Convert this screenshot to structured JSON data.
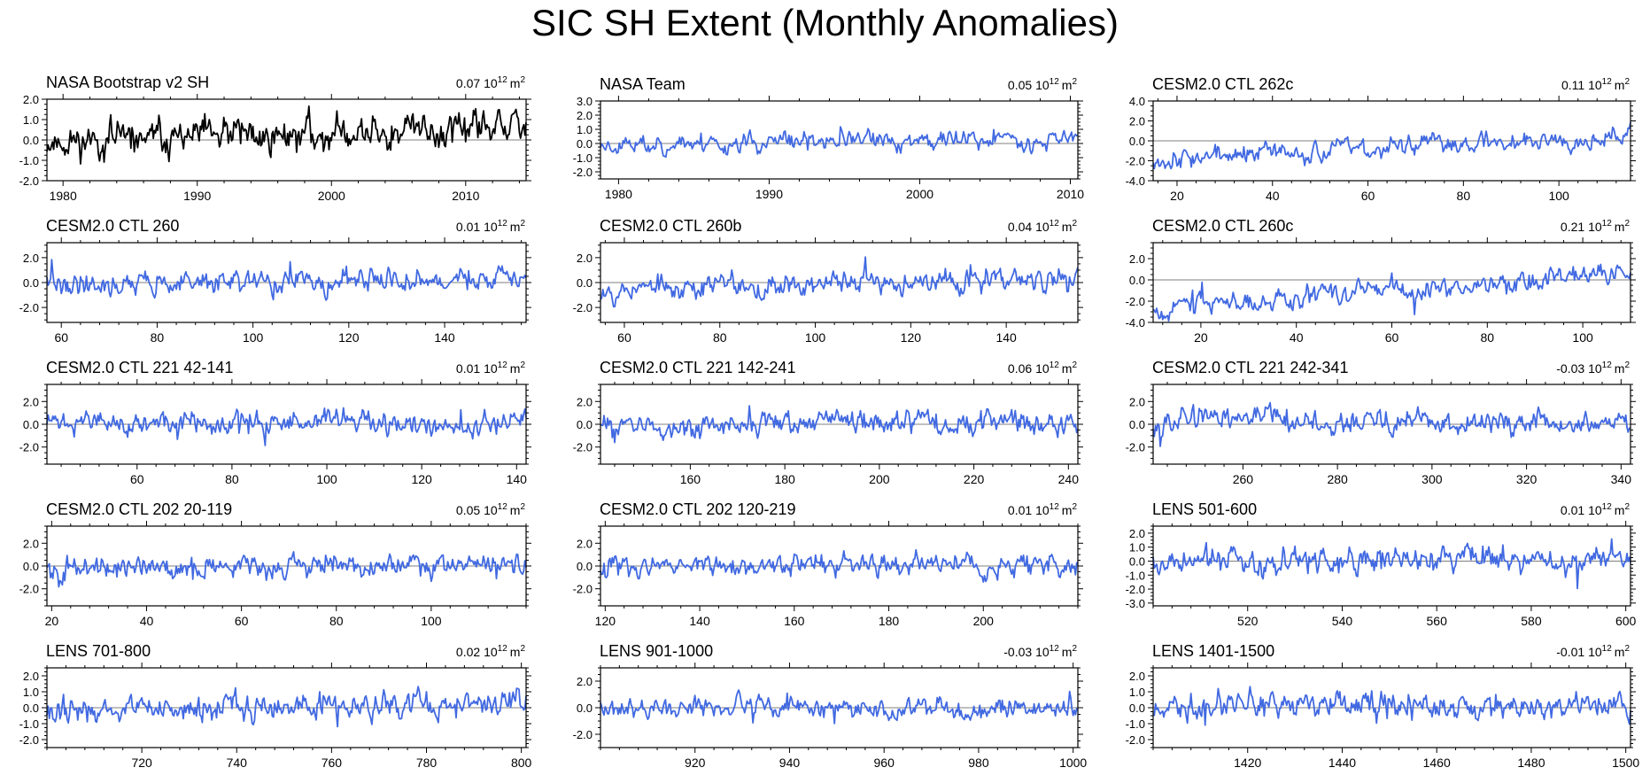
{
  "figure": {
    "title": "SIC SH Extent (Monthly Anomalies)",
    "zero_line_color": "#7f7f7f",
    "axis_color": "#000000"
  },
  "chart_data": [
    {
      "type": "line",
      "title": "NASA Bootstrap v2 SH",
      "trend": "0.07",
      "unit_base": "10",
      "unit_exp": "12",
      "unit_suffix": "m",
      "unit_sup": "2",
      "color": "#000000",
      "xlim": [
        1978.8,
        2014.5
      ],
      "ylim": [
        -2.0,
        2.0
      ],
      "xticks": [
        1980,
        1990,
        2000,
        2010
      ],
      "yticks": [
        "2.0",
        "1.0",
        "0.0",
        "-1.0",
        "-2.0"
      ],
      "ytick_values": [
        2,
        1,
        0,
        -1,
        -2
      ],
      "amplitude": 0.55,
      "seed": 11,
      "trend_endpoints": [
        -0.1,
        0.6
      ]
    },
    {
      "type": "line",
      "title": "NASA Team",
      "trend": "0.05",
      "unit_base": "10",
      "unit_exp": "12",
      "unit_suffix": "m",
      "unit_sup": "2",
      "color": "#4169e1",
      "xlim": [
        1978.8,
        2010.5
      ],
      "ylim": [
        -2.5,
        3.0
      ],
      "xticks": [
        1980,
        1990,
        2000,
        2010
      ],
      "yticks": [
        "3.0",
        "2.0",
        "1.0",
        "0.0",
        "-1.0",
        "-2.0"
      ],
      "ytick_values": [
        3,
        2,
        1,
        0,
        -1,
        -2
      ],
      "amplitude": 0.45,
      "seed": 23,
      "trend_endpoints": [
        -0.1,
        0.4
      ]
    },
    {
      "type": "line",
      "title": "CESM2.0 CTL 262c",
      "trend": "0.11",
      "unit_base": "10",
      "unit_exp": "12",
      "unit_suffix": "m",
      "unit_sup": "2",
      "color": "#4169e1",
      "xlim": [
        15,
        115
      ],
      "ylim": [
        -4.0,
        4.0
      ],
      "xticks": [
        20,
        40,
        60,
        80,
        100
      ],
      "yticks": [
        "4.0",
        "2.0",
        "0.0",
        "-2.0",
        "-4.0"
      ],
      "ytick_values": [
        4,
        2,
        0,
        -2,
        -4
      ],
      "amplitude": 0.65,
      "seed": 37,
      "trend_endpoints": [
        -1.8,
        0.6
      ]
    },
    {
      "type": "line",
      "title": "CESM2.0 CTL 260",
      "trend": "0.01",
      "unit_base": "10",
      "unit_exp": "12",
      "unit_suffix": "m",
      "unit_sup": "2",
      "color": "#4169e1",
      "xlim": [
        57,
        157
      ],
      "ylim": [
        -3.2,
        3.2
      ],
      "xticks": [
        60,
        80,
        100,
        120,
        140
      ],
      "yticks": [
        "2.0",
        "0.0",
        "-2.0"
      ],
      "ytick_values": [
        2,
        0,
        -2
      ],
      "amplitude": 0.6,
      "seed": 41,
      "trend_endpoints": [
        -0.1,
        0.2
      ]
    },
    {
      "type": "line",
      "title": "CESM2.0 CTL 260b",
      "trend": "0.04",
      "unit_base": "10",
      "unit_exp": "12",
      "unit_suffix": "m",
      "unit_sup": "2",
      "color": "#4169e1",
      "xlim": [
        55,
        155
      ],
      "ylim": [
        -3.2,
        3.2
      ],
      "xticks": [
        60,
        80,
        100,
        120,
        140
      ],
      "yticks": [
        "2.0",
        "0.0",
        "-2.0"
      ],
      "ytick_values": [
        2,
        0,
        -2
      ],
      "amplitude": 0.6,
      "seed": 53,
      "trend_endpoints": [
        -0.5,
        0.3
      ]
    },
    {
      "type": "line",
      "title": "CESM2.0 CTL 260c",
      "trend": "0.21",
      "unit_base": "10",
      "unit_exp": "12",
      "unit_suffix": "m",
      "unit_sup": "2",
      "color": "#4169e1",
      "xlim": [
        10,
        110
      ],
      "ylim": [
        -4.0,
        3.5
      ],
      "xticks": [
        20,
        40,
        60,
        80,
        100
      ],
      "yticks": [
        "2.0",
        "0.0",
        "-2.0",
        "-4.0"
      ],
      "ytick_values": [
        2,
        0,
        -2,
        -4
      ],
      "amplitude": 0.6,
      "seed": 67,
      "trend_endpoints": [
        -2.6,
        0.7
      ]
    },
    {
      "type": "line",
      "title": "CESM2.0 CTL 221 42-141",
      "trend": "0.01",
      "unit_base": "10",
      "unit_exp": "12",
      "unit_suffix": "m",
      "unit_sup": "2",
      "color": "#4169e1",
      "xlim": [
        41,
        142
      ],
      "ylim": [
        -3.5,
        3.5
      ],
      "xticks": [
        60,
        80,
        100,
        120,
        140
      ],
      "yticks": [
        "2.0",
        "0.0",
        "-2.0"
      ],
      "ytick_values": [
        2,
        0,
        -2
      ],
      "amplitude": 0.65,
      "seed": 71,
      "trend_endpoints": [
        0.1,
        0.1
      ]
    },
    {
      "type": "line",
      "title": "CESM2.0 CTL 221 142-241",
      "trend": "0.06",
      "unit_base": "10",
      "unit_exp": "12",
      "unit_suffix": "m",
      "unit_sup": "2",
      "color": "#4169e1",
      "xlim": [
        141,
        242
      ],
      "ylim": [
        -3.5,
        3.5
      ],
      "xticks": [
        160,
        180,
        200,
        220,
        240
      ],
      "yticks": [
        "2.0",
        "0.0",
        "-2.0"
      ],
      "ytick_values": [
        2,
        0,
        -2
      ],
      "amplitude": 0.65,
      "seed": 83,
      "trend_endpoints": [
        -0.2,
        0.4
      ]
    },
    {
      "type": "line",
      "title": "CESM2.0 CTL 221 242-341",
      "trend": "-0.03",
      "unit_base": "10",
      "unit_exp": "12",
      "unit_suffix": "m",
      "unit_sup": "2",
      "color": "#4169e1",
      "xlim": [
        241,
        342
      ],
      "ylim": [
        -3.5,
        3.5
      ],
      "xticks": [
        260,
        280,
        300,
        320,
        340
      ],
      "yticks": [
        "2.0",
        "0.0",
        "-2.0"
      ],
      "ytick_values": [
        2,
        0,
        -2
      ],
      "amplitude": 0.65,
      "seed": 97,
      "trend_endpoints": [
        0.4,
        -0.1
      ]
    },
    {
      "type": "line",
      "title": "CESM2.0 CTL 202 20-119",
      "trend": "0.05",
      "unit_base": "10",
      "unit_exp": "12",
      "unit_suffix": "m",
      "unit_sup": "2",
      "color": "#4169e1",
      "xlim": [
        19,
        120
      ],
      "ylim": [
        -3.5,
        3.5
      ],
      "xticks": [
        20,
        40,
        60,
        80,
        100
      ],
      "yticks": [
        "2.0",
        "0.0",
        "-2.0"
      ],
      "ytick_values": [
        2,
        0,
        -2
      ],
      "amplitude": 0.65,
      "seed": 101,
      "trend_endpoints": [
        -0.3,
        0.3
      ]
    },
    {
      "type": "line",
      "title": "CESM2.0 CTL 202 120-219",
      "trend": "0.01",
      "unit_base": "10",
      "unit_exp": "12",
      "unit_suffix": "m",
      "unit_sup": "2",
      "color": "#4169e1",
      "xlim": [
        119,
        220
      ],
      "ylim": [
        -3.5,
        3.5
      ],
      "xticks": [
        120,
        140,
        160,
        180,
        200
      ],
      "yticks": [
        "2.0",
        "0.0",
        "-2.0"
      ],
      "ytick_values": [
        2,
        0,
        -2
      ],
      "amplitude": 0.6,
      "seed": 113,
      "trend_endpoints": [
        0.0,
        0.1
      ]
    },
    {
      "type": "line",
      "title": "LENS 501-600",
      "trend": "0.01",
      "unit_base": "10",
      "unit_exp": "12",
      "unit_suffix": "m",
      "unit_sup": "2",
      "color": "#4169e1",
      "xlim": [
        500,
        601
      ],
      "ylim": [
        -3.2,
        2.5
      ],
      "xticks": [
        520,
        540,
        560,
        580,
        600
      ],
      "yticks": [
        "2.0",
        "1.0",
        "0.0",
        "-1.0",
        "-2.0",
        "-3.0"
      ],
      "ytick_values": [
        2,
        1,
        0,
        -1,
        -2,
        -3
      ],
      "amplitude": 0.6,
      "seed": 127,
      "trend_endpoints": [
        0.0,
        0.1
      ]
    },
    {
      "type": "line",
      "title": "LENS 701-800",
      "trend": "0.02",
      "unit_base": "10",
      "unit_exp": "12",
      "unit_suffix": "m",
      "unit_sup": "2",
      "color": "#4169e1",
      "xlim": [
        700,
        801
      ],
      "ylim": [
        -2.5,
        2.5
      ],
      "xticks": [
        720,
        740,
        760,
        780,
        800
      ],
      "yticks": [
        "2.0",
        "1.0",
        "0.0",
        "-1.0",
        "-2.0"
      ],
      "ytick_values": [
        2,
        1,
        0,
        -1,
        -2
      ],
      "amplitude": 0.5,
      "seed": 131,
      "trend_endpoints": [
        -0.1,
        0.2
      ]
    },
    {
      "type": "line",
      "title": "LENS 901-1000",
      "trend": "-0.03",
      "unit_base": "10",
      "unit_exp": "12",
      "unit_suffix": "m",
      "unit_sup": "2",
      "color": "#4169e1",
      "xlim": [
        900,
        1001
      ],
      "ylim": [
        -3.0,
        3.0
      ],
      "xticks": [
        920,
        940,
        960,
        980,
        1000
      ],
      "yticks": [
        "2.0",
        "0.0",
        "-2.0"
      ],
      "ytick_values": [
        2,
        0,
        -2
      ],
      "amplitude": 0.5,
      "seed": 149,
      "trend_endpoints": [
        0.1,
        -0.2
      ]
    },
    {
      "type": "line",
      "title": "LENS 1401-1500",
      "trend": "-0.01",
      "unit_base": "10",
      "unit_exp": "12",
      "unit_suffix": "m",
      "unit_sup": "2",
      "color": "#4169e1",
      "xlim": [
        1400,
        1501
      ],
      "ylim": [
        -2.5,
        2.5
      ],
      "xticks": [
        1420,
        1440,
        1460,
        1480,
        1500
      ],
      "yticks": [
        "2.0",
        "1.0",
        "0.0",
        "-1.0",
        "-2.0"
      ],
      "ytick_values": [
        2,
        1,
        0,
        -1,
        -2
      ],
      "amplitude": 0.55,
      "seed": 163,
      "trend_endpoints": [
        0.1,
        0.0
      ]
    }
  ]
}
